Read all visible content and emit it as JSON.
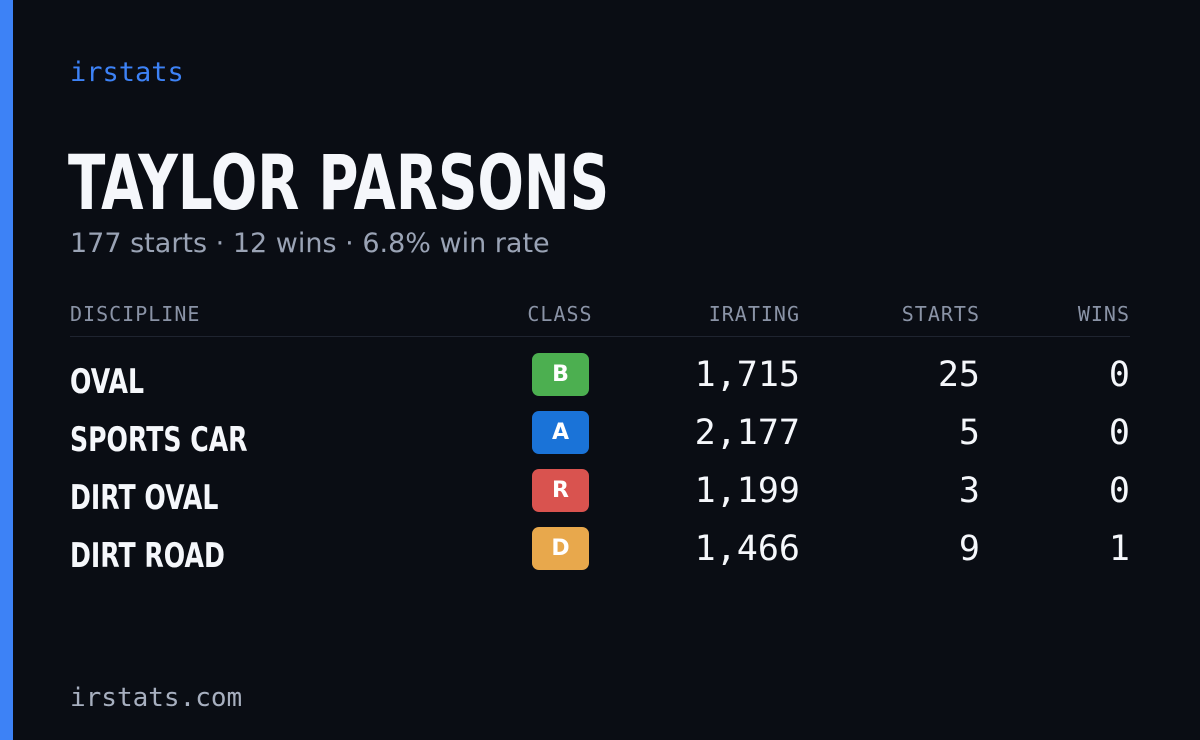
{
  "brand": "irstats",
  "player": {
    "name": "TAYLOR PARSONS",
    "starts_text": "177 starts",
    "wins_text": "12 wins",
    "win_rate_text": "6.8% win rate",
    "separator": "·"
  },
  "table": {
    "headers": {
      "discipline": "DISCIPLINE",
      "class": "CLASS",
      "irating": "IRATING",
      "starts": "STARTS",
      "wins": "WINS"
    },
    "rows": [
      {
        "discipline": "OVAL",
        "class": "B",
        "class_color": "#4caf50",
        "irating": "1,715",
        "starts": "25",
        "wins": "0"
      },
      {
        "discipline": "SPORTS CAR",
        "class": "A",
        "class_color": "#1a73d8",
        "irating": "2,177",
        "starts": "5",
        "wins": "0"
      },
      {
        "discipline": "DIRT OVAL",
        "class": "R",
        "class_color": "#d9534f",
        "irating": "1,199",
        "starts": "3",
        "wins": "0"
      },
      {
        "discipline": "DIRT ROAD",
        "class": "D",
        "class_color": "#e8a84c",
        "irating": "1,466",
        "starts": "9",
        "wins": "1"
      }
    ]
  },
  "footer": {
    "domain": "irstats.com"
  },
  "colors": {
    "accent": "#3d82f6",
    "background": "#0a0d14"
  }
}
